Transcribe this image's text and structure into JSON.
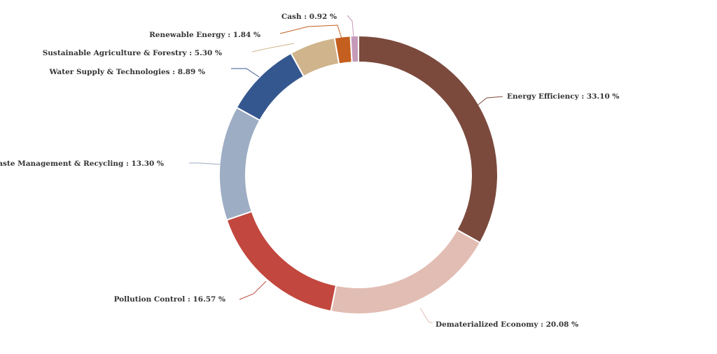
{
  "chart_data": {
    "type": "pie",
    "variant": "donut",
    "title": "",
    "legend": "none",
    "label_format": "{name} : {value} %",
    "categories": [
      "Energy Efficiency",
      "Dematerialized Economy",
      "Pollution Control",
      "Waste Management & Recycling",
      "Water Supply & Technologies",
      "Sustainable Agriculture & Forestry",
      "Renewable Energy",
      "Cash"
    ],
    "values": [
      33.1,
      20.08,
      16.57,
      13.3,
      8.89,
      5.3,
      1.84,
      0.92
    ],
    "value_labels": [
      "33.10",
      "20.08",
      "16.57",
      "13.30",
      "8.89",
      "5.30",
      "1.84",
      "0.92"
    ],
    "unit": "%",
    "colors": [
      "#7b4a3d",
      "#e2bdb3",
      "#c2473e",
      "#9dadc3",
      "#35578f",
      "#cfb48c",
      "#c45f1f",
      "#c59ab8"
    ]
  }
}
